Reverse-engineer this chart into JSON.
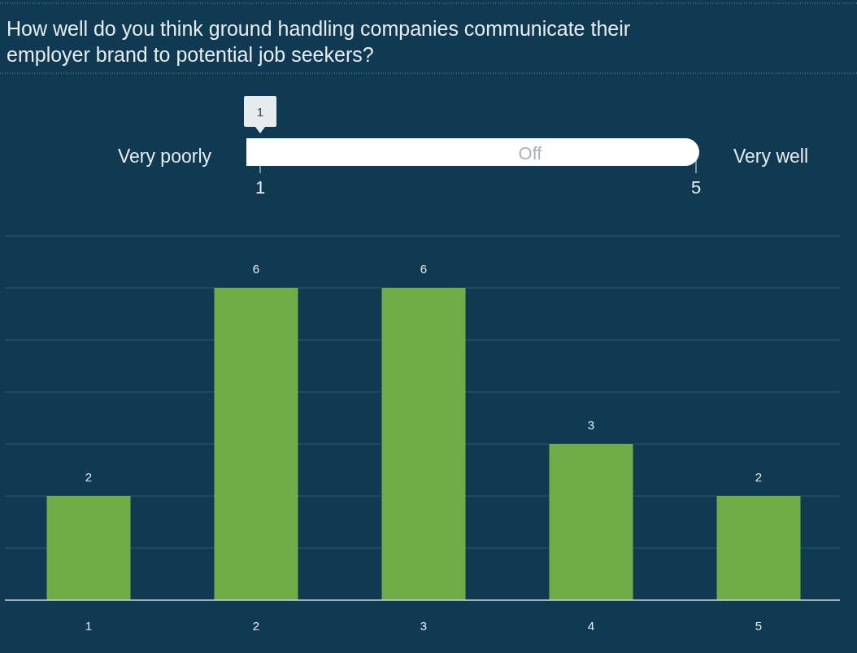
{
  "chart_data": {
    "type": "bar",
    "title": "How well do you think ground handling companies communicate their employer brand to potential job seekers?",
    "categories": [
      "1",
      "2",
      "3",
      "4",
      "5"
    ],
    "values": [
      2,
      6,
      6,
      3,
      2
    ],
    "color": "#70ad47",
    "ylim": [
      0,
      7
    ],
    "yticks": [
      {
        "value": 0,
        "label": null
      },
      {
        "value": 1,
        "label": null
      },
      {
        "value": 2,
        "label": null
      },
      {
        "value": 3,
        "label": null
      },
      {
        "value": 4,
        "label": null
      },
      {
        "value": 5,
        "label": null
      },
      {
        "value": 6,
        "label": null
      },
      {
        "value": 7,
        "label": null
      }
    ],
    "grid": "y",
    "data_labels": true,
    "tick_labels": "x",
    "annotations": [
      "1",
      "Very poorly",
      "Very well",
      "1",
      "5",
      "Off"
    ]
  }
}
